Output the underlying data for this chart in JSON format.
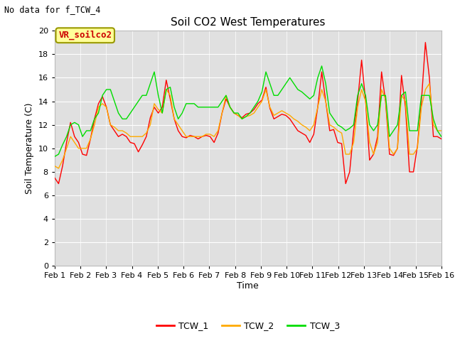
{
  "title": "Soil CO2 West Temperatures",
  "top_left_text": "No data for f_TCW_4",
  "ylabel": "Soil Temperature (C)",
  "xlabel": "Time",
  "annotation_label": "VR_soilco2",
  "annotation_bg_color": "#ffff99",
  "annotation_text_color": "#cc0000",
  "annotation_edge_color": "#999900",
  "ylim": [
    0,
    20
  ],
  "yticks": [
    0,
    2,
    4,
    6,
    8,
    10,
    12,
    14,
    16,
    18,
    20
  ],
  "xtick_labels": [
    "Feb 1",
    "Feb 2",
    "Feb 3",
    "Feb 4",
    "Feb 5",
    "Feb 6",
    "Feb 7",
    "Feb 8",
    "Feb 9",
    "Feb 10",
    "Feb 11",
    "Feb 12",
    "Feb 13",
    "Feb 14",
    "Feb 15",
    "Feb 16"
  ],
  "fig_bg_color": "#ffffff",
  "plot_bg_color": "#e0e0e0",
  "grid_color": "#ffffff",
  "line_color_1": "#ff0000",
  "line_color_2": "#ffaa00",
  "line_color_3": "#00dd00",
  "legend_labels": [
    "TCW_1",
    "TCW_2",
    "TCW_3"
  ],
  "TCW_1": [
    7.5,
    7.0,
    8.5,
    10.5,
    12.2,
    11.0,
    10.5,
    9.5,
    9.4,
    10.8,
    12.5,
    13.8,
    14.4,
    13.5,
    12.0,
    11.5,
    11.0,
    11.2,
    11.0,
    10.5,
    10.4,
    9.7,
    10.3,
    11.0,
    12.6,
    13.5,
    13.0,
    13.5,
    15.8,
    14.2,
    12.5,
    11.5,
    11.0,
    10.9,
    11.1,
    11.0,
    10.8,
    11.0,
    11.1,
    11.0,
    10.5,
    11.3,
    13.0,
    14.2,
    13.5,
    13.0,
    12.8,
    12.6,
    12.9,
    13.0,
    13.3,
    13.8,
    14.1,
    15.2,
    13.4,
    12.5,
    12.7,
    12.9,
    12.8,
    12.5,
    12.0,
    11.5,
    11.3,
    11.1,
    10.5,
    11.2,
    13.5,
    16.5,
    14.0,
    11.5,
    11.6,
    10.5,
    10.4,
    7.0,
    8.0,
    11.5,
    14.0,
    17.5,
    14.0,
    9.0,
    9.5,
    11.0,
    16.5,
    14.0,
    9.5,
    9.4,
    10.0,
    16.2,
    13.5,
    8.0,
    8.0,
    10.2,
    14.0,
    19.0,
    16.0,
    11.0,
    11.0,
    10.8
  ],
  "TCW_2": [
    8.5,
    8.3,
    9.0,
    10.0,
    11.0,
    10.5,
    10.0,
    10.0,
    10.0,
    10.8,
    12.0,
    13.5,
    13.8,
    13.5,
    12.0,
    11.8,
    11.5,
    11.5,
    11.3,
    11.0,
    11.0,
    11.0,
    11.0,
    11.3,
    12.0,
    13.8,
    13.3,
    13.0,
    15.0,
    14.5,
    12.5,
    12.0,
    11.5,
    11.0,
    11.0,
    11.0,
    11.0,
    11.0,
    11.2,
    11.2,
    11.0,
    11.5,
    13.0,
    14.5,
    13.5,
    13.0,
    12.8,
    12.5,
    12.7,
    12.8,
    13.0,
    13.5,
    14.0,
    15.0,
    13.5,
    12.8,
    13.0,
    13.2,
    13.0,
    12.8,
    12.5,
    12.3,
    12.0,
    11.8,
    11.5,
    12.0,
    13.5,
    15.0,
    14.0,
    12.0,
    11.8,
    11.5,
    11.3,
    9.5,
    9.5,
    10.5,
    13.5,
    15.0,
    14.0,
    10.5,
    9.5,
    10.5,
    15.0,
    14.2,
    10.0,
    9.5,
    10.0,
    14.5,
    14.0,
    9.5,
    9.5,
    10.0,
    13.5,
    15.0,
    15.5,
    12.0,
    11.5,
    11.5
  ],
  "TCW_3": [
    9.3,
    9.5,
    10.3,
    11.0,
    12.0,
    12.2,
    12.0,
    11.0,
    11.5,
    11.5,
    12.5,
    13.0,
    14.5,
    15.0,
    15.0,
    14.0,
    13.0,
    12.5,
    12.5,
    13.0,
    13.5,
    14.0,
    14.5,
    14.5,
    15.5,
    16.5,
    14.5,
    13.0,
    15.0,
    15.2,
    13.5,
    12.5,
    13.0,
    13.8,
    13.8,
    13.8,
    13.5,
    13.5,
    13.5,
    13.5,
    13.5,
    13.5,
    14.0,
    14.5,
    13.5,
    13.0,
    13.0,
    12.5,
    12.7,
    13.0,
    13.5,
    14.0,
    14.8,
    16.5,
    15.5,
    14.5,
    14.5,
    15.0,
    15.5,
    16.0,
    15.5,
    15.0,
    14.8,
    14.5,
    14.2,
    14.5,
    16.0,
    17.0,
    15.5,
    13.0,
    12.5,
    12.0,
    11.8,
    11.5,
    11.7,
    12.0,
    14.5,
    15.5,
    14.5,
    12.0,
    11.5,
    12.0,
    14.5,
    14.5,
    11.0,
    11.5,
    12.0,
    14.5,
    14.8,
    11.5,
    11.5,
    11.5,
    14.5,
    14.5,
    14.5,
    12.5,
    11.5,
    11.0
  ]
}
